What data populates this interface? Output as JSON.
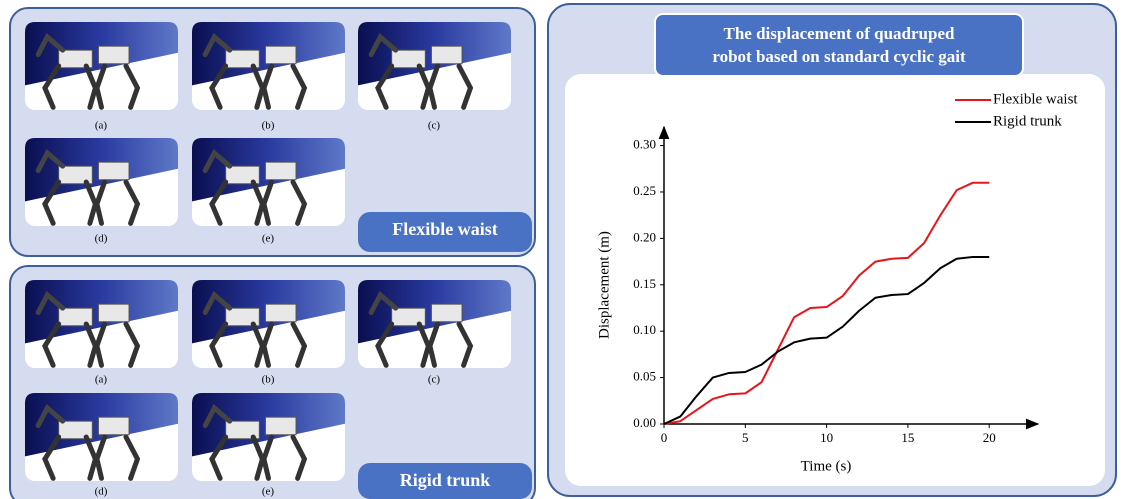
{
  "panels": [
    {
      "label": "Flexible waist",
      "captions": [
        "(a)",
        "(b)",
        "(c)",
        "(d)",
        "(e)"
      ]
    },
    {
      "label": "Rigid trunk",
      "captions": [
        "(a)",
        "(b)",
        "(c)",
        "(d)",
        "(e)"
      ]
    }
  ],
  "chart_data": {
    "type": "line",
    "title": [
      "The displacement of quadruped",
      "robot based on standard cyclic gait"
    ],
    "x_label": "Time (s)",
    "y_label": "Displacement (m)",
    "x": [
      0,
      1,
      2,
      3,
      4,
      5,
      6,
      7,
      8,
      9,
      10,
      11,
      12,
      13,
      14,
      15,
      16,
      17,
      18,
      19,
      20
    ],
    "series": [
      {
        "name": "Flexible waist",
        "color": "#e8141c",
        "values": [
          0,
          0.003,
          0.015,
          0.027,
          0.032,
          0.033,
          0.045,
          0.08,
          0.115,
          0.125,
          0.126,
          0.138,
          0.16,
          0.175,
          0.178,
          0.179,
          0.195,
          0.225,
          0.252,
          0.26,
          0.26
        ]
      },
      {
        "name": "Rigid trunk",
        "color": "#000000",
        "values": [
          0,
          0.008,
          0.03,
          0.05,
          0.055,
          0.056,
          0.064,
          0.078,
          0.088,
          0.092,
          0.093,
          0.105,
          0.122,
          0.136,
          0.139,
          0.14,
          0.152,
          0.168,
          0.178,
          0.18,
          0.18
        ]
      }
    ],
    "xlim": [
      0,
      23
    ],
    "ylim": [
      0,
      0.32
    ],
    "xticks": [
      0,
      5,
      10,
      15,
      20
    ],
    "yticks": [
      {
        "value": 0,
        "label": "0.00"
      },
      {
        "value": 0.05,
        "label": "0.05"
      },
      {
        "value": 0.1,
        "label": "0.10"
      },
      {
        "value": 0.15,
        "label": "0.15"
      },
      {
        "value": 0.2,
        "label": "0.20"
      },
      {
        "value": 0.25,
        "label": "0.25"
      },
      {
        "value": 0.3,
        "label": "0.30"
      }
    ],
    "legend": "upper right",
    "grid": false
  }
}
